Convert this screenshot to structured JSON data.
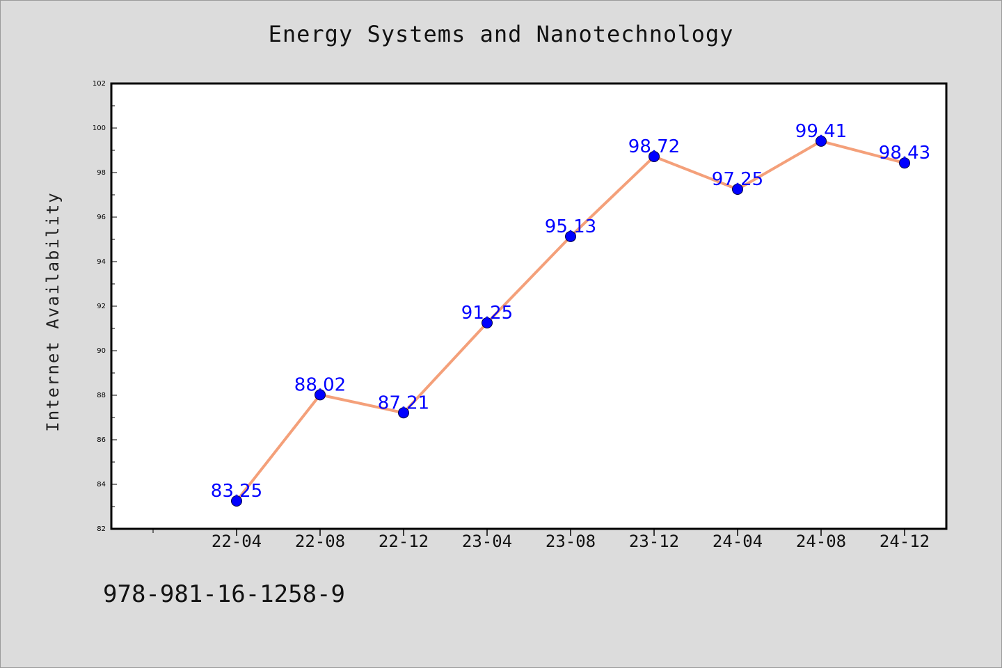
{
  "chart_data": {
    "type": "line",
    "title": "Energy Systems and Nanotechnology",
    "xlabel": "",
    "ylabel": "Internet Availability",
    "categories": [
      "22-04",
      "22-08",
      "22-12",
      "23-04",
      "23-08",
      "23-12",
      "24-04",
      "24-08",
      "24-12"
    ],
    "series": [
      {
        "values": [
          83.25,
          88.02,
          87.21,
          91.25,
          95.13,
          98.72,
          97.25,
          99.41,
          98.43
        ]
      }
    ],
    "data_labels": [
      "83.25",
      "88.02",
      "87.21",
      "91.25",
      "95.13",
      "98.72",
      "97.25",
      "99.41",
      "98.43"
    ],
    "ylim": [
      82,
      102
    ],
    "yticks": [
      82,
      84,
      86,
      88,
      90,
      92,
      94,
      96,
      98,
      100,
      102
    ],
    "grid": false,
    "colors": {
      "line": "#f4a07a",
      "marker": "#0000ff",
      "label": "#0000ff",
      "background": "#dcdcdc",
      "plot_area": "#ffffff"
    }
  },
  "footer_code": "978-981-16-1258-9"
}
